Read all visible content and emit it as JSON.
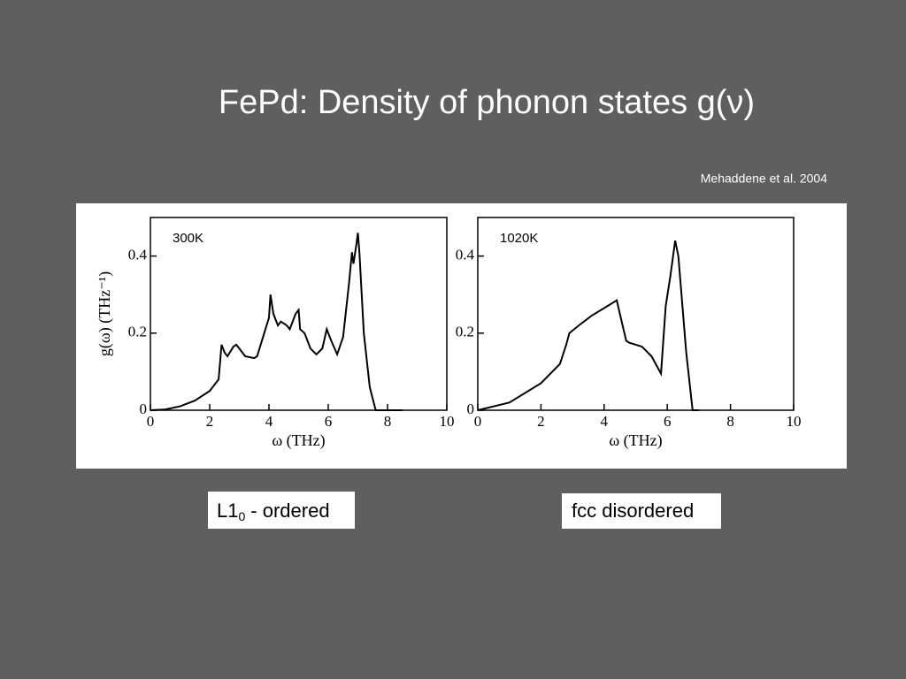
{
  "title": "FePd: Density of phonon states g(ν)",
  "citation": "Mehaddene et al. 2004",
  "labels": [
    {
      "main": "L1",
      "subscript": "0",
      "rest": "- ordered"
    },
    {
      "main": "fcc disordered"
    }
  ],
  "chart_data": [
    {
      "type": "line",
      "annotation": "300K",
      "x_label": "ω (THz)",
      "y_label": "g(ω) (THz⁻¹)",
      "xlim": [
        0,
        10
      ],
      "ylim": [
        0,
        0.5
      ],
      "xticks": [
        0,
        2,
        4,
        6,
        8,
        10
      ],
      "yticks": [
        0,
        0.2,
        0.4
      ],
      "color": "#000000",
      "x": [
        0,
        0.5,
        1,
        1.5,
        2,
        2.3,
        2.4,
        2.5,
        2.6,
        2.8,
        2.9,
        3.0,
        3.2,
        3.5,
        3.6,
        3.8,
        4.0,
        4.05,
        4.15,
        4.3,
        4.4,
        4.6,
        4.7,
        4.9,
        5.0,
        5.05,
        5.2,
        5.4,
        5.6,
        5.8,
        5.95,
        6.1,
        6.3,
        6.5,
        6.7,
        6.8,
        6.85,
        6.95,
        7.0,
        7.05,
        7.2,
        7.4,
        7.6,
        8.0,
        8.5
      ],
      "values": [
        0,
        0.002,
        0.01,
        0.025,
        0.05,
        0.08,
        0.17,
        0.15,
        0.14,
        0.165,
        0.17,
        0.16,
        0.14,
        0.135,
        0.14,
        0.19,
        0.24,
        0.3,
        0.25,
        0.22,
        0.23,
        0.22,
        0.21,
        0.25,
        0.26,
        0.21,
        0.2,
        0.16,
        0.145,
        0.16,
        0.21,
        0.18,
        0.145,
        0.19,
        0.33,
        0.41,
        0.38,
        0.43,
        0.46,
        0.41,
        0.2,
        0.06,
        0,
        0,
        0
      ]
    },
    {
      "type": "line",
      "annotation": "1020K",
      "x_label": "ω (THz)",
      "xlim": [
        0,
        10
      ],
      "ylim": [
        0,
        0.5
      ],
      "xticks": [
        0,
        2,
        4,
        6,
        8,
        10
      ],
      "yticks": [
        0,
        0.2,
        0.4
      ],
      "color": "#000000",
      "x": [
        0,
        1,
        2,
        2.6,
        2.8,
        2.9,
        3.2,
        3.6,
        4.0,
        4.4,
        4.5,
        4.7,
        4.8,
        5.2,
        5.5,
        5.8,
        5.95,
        6.1,
        6.25,
        6.35,
        6.6,
        6.8,
        7.0
      ],
      "values": [
        0,
        0.02,
        0.07,
        0.12,
        0.17,
        0.2,
        0.22,
        0.245,
        0.265,
        0.285,
        0.25,
        0.18,
        0.175,
        0.165,
        0.14,
        0.095,
        0.27,
        0.35,
        0.44,
        0.4,
        0.15,
        0,
        0
      ]
    }
  ]
}
